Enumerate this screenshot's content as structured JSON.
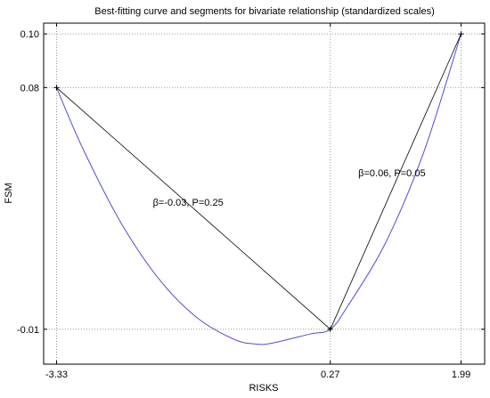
{
  "chart_data": {
    "type": "line",
    "title": "Best-fitting curve and segments for bivariate relationship (standardized scales)",
    "xlabel": "RISKS",
    "ylabel": "FSM",
    "x_ticks": [
      -3.33,
      0.27,
      1.99
    ],
    "x_tick_labels": [
      "-3.33",
      "0.27",
      "1.99"
    ],
    "y_ticks": [
      -0.01,
      0.08,
      0.1
    ],
    "y_tick_labels": [
      "-0.01",
      "0.08",
      "0.10"
    ],
    "xlim": [
      -3.5,
      2.3
    ],
    "ylim": [
      -0.023,
      0.104
    ],
    "grid": "dotted at ticks",
    "series": [
      {
        "color": "#4f4fcf",
        "x": [
          -3.33,
          -3.0,
          -2.5,
          -2.0,
          -1.5,
          -1.0,
          -0.71,
          -0.5,
          0.0,
          0.27,
          0.5,
          1.0,
          1.5,
          1.99
        ],
        "y": [
          0.08,
          0.0582,
          0.0305,
          0.0093,
          -0.0053,
          -0.0137,
          -0.0155,
          -0.0152,
          -0.0118,
          -0.01,
          -0.0013,
          0.0224,
          0.056,
          0.1
        ]
      },
      {
        "color": "#000000",
        "x": [
          -3.33,
          0.27,
          1.99
        ],
        "y": [
          0.08,
          -0.01,
          0.1
        ]
      }
    ],
    "annotations": [
      {
        "text": "β=-0.03, P=0.25",
        "x": -1.6,
        "y": 0.036
      },
      {
        "text": "β=0.06, P=0.05",
        "x": 1.08,
        "y": 0.047
      }
    ]
  }
}
